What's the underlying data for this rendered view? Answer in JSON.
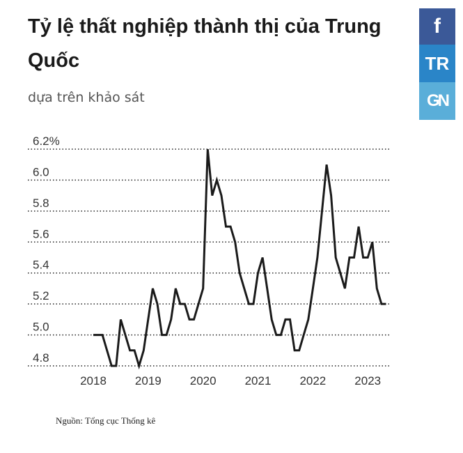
{
  "title": "Tỷ lệ thất nghiệp thành thị của Trung Quốc",
  "subtitle": "dựa trên khảo sát",
  "share": {
    "facebook": {
      "label": "f",
      "icon": "facebook-icon"
    },
    "twitter": {
      "label": "TR",
      "icon": "share-tr-icon"
    },
    "other": {
      "label": "GN",
      "icon": "share-gn-icon"
    }
  },
  "colors": {
    "line": "#1a1a1a",
    "grid": "#222222",
    "facebook": "#3b5998",
    "tr": "#2a85c8",
    "gn": "#5aaed9"
  },
  "chart_data": {
    "type": "line",
    "title": "Tỷ lệ thất nghiệp thành thị của Trung Quốc",
    "subtitle": "dựa trên khảo sát",
    "ylim": [
      4.8,
      6.2
    ],
    "yticks": [
      4.8,
      5.0,
      5.2,
      5.4,
      5.6,
      5.8,
      6.0,
      6.2
    ],
    "ytick_labels": [
      "4.8",
      "5.0",
      "5.2",
      "5.4",
      "5.6",
      "5.8",
      "6.0",
      "6.2%"
    ],
    "xticks": [
      "2018",
      "2019",
      "2020",
      "2021",
      "2022",
      "2023"
    ],
    "grid": "horizontal dotted",
    "series": [
      {
        "values": [
          5.0,
          5.0,
          5.0,
          4.9,
          4.8,
          4.8,
          5.1,
          5.0,
          4.9,
          4.9,
          4.8,
          4.9,
          5.1,
          5.3,
          5.2,
          5.0,
          5.0,
          5.1,
          5.3,
          5.2,
          5.2,
          5.1,
          5.1,
          5.2,
          5.3,
          6.2,
          5.9,
          6.0,
          5.9,
          5.7,
          5.7,
          5.6,
          5.4,
          5.3,
          5.2,
          5.2,
          5.4,
          5.5,
          5.3,
          5.1,
          5.0,
          5.0,
          5.1,
          5.1,
          4.9,
          4.9,
          5.0,
          5.1,
          5.3,
          5.5,
          5.8,
          6.1,
          5.9,
          5.5,
          5.4,
          5.3,
          5.5,
          5.5,
          5.7,
          5.5,
          5.5,
          5.6,
          5.3,
          5.2,
          5.2
        ]
      }
    ]
  },
  "source": "Nguồn: Tổng cục Thống kê"
}
